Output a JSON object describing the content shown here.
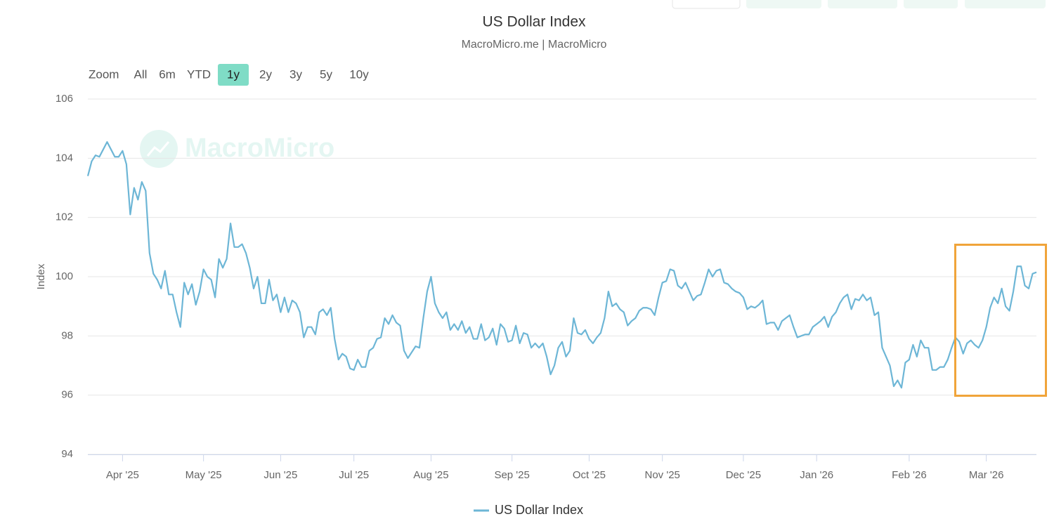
{
  "chart_data": {
    "type": "line",
    "title": "US Dollar Index",
    "subtitle": "MacroMicro.me | MacroMicro",
    "watermark": "MacroMicro",
    "range_selector": {
      "label": "Zoom",
      "buttons": [
        "All",
        "6m",
        "YTD",
        "1y",
        "2y",
        "3y",
        "5y",
        "10y"
      ],
      "selected": 3
    },
    "y_label": "Index",
    "ylim": [
      94,
      106
    ],
    "yticks": [
      94,
      96,
      98,
      100,
      102,
      104,
      106
    ],
    "grid": true,
    "categories": [
      null,
      null,
      null,
      null,
      null,
      null,
      null,
      null,
      null,
      "Apr '25",
      null,
      null,
      null,
      null,
      null,
      null,
      null,
      null,
      null,
      null,
      null,
      null,
      null,
      null,
      null,
      null,
      null,
      null,
      null,
      null,
      "May '25",
      null,
      null,
      null,
      null,
      null,
      null,
      null,
      null,
      null,
      null,
      null,
      null,
      null,
      null,
      null,
      null,
      null,
      null,
      null,
      "Jun '25",
      null,
      null,
      null,
      null,
      null,
      null,
      null,
      null,
      null,
      null,
      null,
      null,
      null,
      null,
      null,
      null,
      null,
      null,
      "Jul '25",
      null,
      null,
      null,
      null,
      null,
      null,
      null,
      null,
      null,
      null,
      null,
      null,
      null,
      null,
      null,
      null,
      null,
      null,
      null,
      "Aug '25",
      null,
      null,
      null,
      null,
      null,
      null,
      null,
      null,
      null,
      null,
      null,
      null,
      null,
      null,
      null,
      null,
      null,
      null,
      null,
      null,
      "Sep '25",
      null,
      null,
      null,
      null,
      null,
      null,
      null,
      null,
      null,
      null,
      null,
      null,
      null,
      null,
      null,
      null,
      null,
      null,
      null,
      "Oct '25",
      null,
      null,
      null,
      null,
      null,
      null,
      null,
      null,
      null,
      null,
      null,
      null,
      null,
      null,
      null,
      null,
      null,
      null,
      "Nov '25",
      null,
      null,
      null,
      null,
      null,
      null,
      null,
      null,
      null,
      null,
      null,
      null,
      null,
      null,
      null,
      null,
      null,
      null,
      null,
      null,
      "Dec '25",
      null,
      null,
      null,
      null,
      null,
      null,
      null,
      null,
      null,
      null,
      null,
      null,
      null,
      null,
      null,
      null,
      null,
      null,
      "Jan '26",
      null,
      null,
      null,
      null,
      null,
      null,
      null,
      null,
      null,
      null,
      null,
      null,
      null,
      null,
      null,
      null,
      null,
      null,
      null,
      null,
      null,
      null,
      null,
      "Feb '26",
      null,
      null,
      null,
      null,
      null,
      null,
      null,
      null,
      null,
      null,
      null,
      null,
      null,
      null,
      null,
      null,
      null,
      null,
      null,
      "Mar '26",
      null,
      null,
      null,
      null,
      null,
      null,
      null,
      null,
      null,
      null,
      null,
      null,
      null
    ],
    "series": [
      {
        "name": "US Dollar Index",
        "color": "#6db6d6",
        "values": [
          103.4,
          103.9,
          104.1,
          104.05,
          104.3,
          104.55,
          104.3,
          104.05,
          104.05,
          104.25,
          103.8,
          102.1,
          103.0,
          102.6,
          103.2,
          102.9,
          100.8,
          100.1,
          99.9,
          99.6,
          100.2,
          99.4,
          99.4,
          98.8,
          98.3,
          99.8,
          99.4,
          99.75,
          99.05,
          99.5,
          100.25,
          100.0,
          99.9,
          99.3,
          100.6,
          100.3,
          100.6,
          101.8,
          101.0,
          101.0,
          101.1,
          100.8,
          100.3,
          99.6,
          100.0,
          99.1,
          99.1,
          99.9,
          99.2,
          99.4,
          98.8,
          99.3,
          98.8,
          99.2,
          99.1,
          98.8,
          97.95,
          98.3,
          98.3,
          98.05,
          98.8,
          98.9,
          98.7,
          98.95,
          97.9,
          97.2,
          97.4,
          97.3,
          96.9,
          96.85,
          97.2,
          96.95,
          96.95,
          97.5,
          97.6,
          97.9,
          97.95,
          98.6,
          98.4,
          98.7,
          98.45,
          98.35,
          97.5,
          97.25,
          97.45,
          97.65,
          97.6,
          98.6,
          99.5,
          100.0,
          99.1,
          98.8,
          98.6,
          98.8,
          98.2,
          98.4,
          98.2,
          98.5,
          98.1,
          98.3,
          97.9,
          97.9,
          98.4,
          97.85,
          97.95,
          98.25,
          97.7,
          98.4,
          98.25,
          97.8,
          97.85,
          98.35,
          97.75,
          98.1,
          98.05,
          97.6,
          97.75,
          97.6,
          97.75,
          97.3,
          96.7,
          97.0,
          97.6,
          97.8,
          97.3,
          97.5,
          98.6,
          98.1,
          98.05,
          98.2,
          97.9,
          97.75,
          97.95,
          98.1,
          98.6,
          99.5,
          99.0,
          99.1,
          98.9,
          98.8,
          98.35,
          98.5,
          98.6,
          98.85,
          98.95,
          98.95,
          98.9,
          98.7,
          99.3,
          99.8,
          99.85,
          100.25,
          100.2,
          99.7,
          99.6,
          99.8,
          99.5,
          99.2,
          99.35,
          99.4,
          99.8,
          100.25,
          100.0,
          100.2,
          100.25,
          99.8,
          99.75,
          99.6,
          99.5,
          99.45,
          99.3,
          98.9,
          99.0,
          98.95,
          99.05,
          99.2,
          98.4,
          98.45,
          98.45,
          98.2,
          98.5,
          98.6,
          98.7,
          98.3,
          97.95,
          98.0,
          98.05,
          98.05,
          98.3,
          98.4,
          98.5,
          98.65,
          98.3,
          98.65,
          98.8,
          99.1,
          99.3,
          99.4,
          98.9,
          99.25,
          99.2,
          99.4,
          99.2,
          99.3,
          98.7,
          98.8,
          97.6,
          97.3,
          97.0,
          96.3,
          96.5,
          96.25,
          97.1,
          97.2,
          97.7,
          97.3,
          97.85,
          97.6,
          97.6,
          96.85,
          96.85,
          96.95,
          96.95,
          97.2,
          97.6,
          97.95,
          97.8,
          97.4,
          97.75,
          97.85,
          97.7,
          97.6,
          97.85,
          98.3,
          98.95,
          99.3,
          99.1,
          99.6,
          99.0,
          98.85,
          99.5,
          100.35,
          100.35,
          99.7,
          99.6,
          100.1,
          100.15
        ]
      }
    ]
  }
}
